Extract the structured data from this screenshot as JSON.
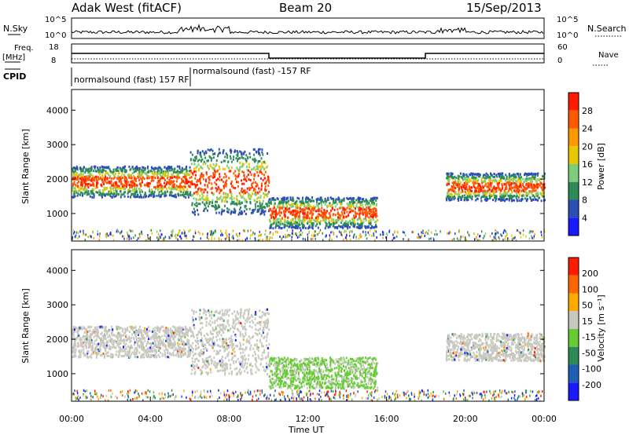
{
  "header": {
    "title": "Adak West (fitACF)",
    "beam": "Beam 20",
    "date": "15/Sep/2013"
  },
  "top_panels": {
    "nsky_label": "N.Sky",
    "nsearch_label": "N.Search",
    "noise_ticks_left": [
      "10^5",
      "10^0"
    ],
    "noise_ticks_right": [
      "10^5",
      "10^0"
    ],
    "freq_label": "Freq.",
    "freq_unit": "[MHz]",
    "freq_ticks": [
      "18",
      "8"
    ],
    "nave_label": "Nave",
    "nave_ticks": [
      "60",
      "0"
    ],
    "cpid_label": "CPID",
    "cpid_entries": [
      "normalsound (fast) 157 RF",
      "normalsound (fast) -157 RF"
    ]
  },
  "chart_data": [
    {
      "type": "heatmap",
      "title": "",
      "ylabel": "Slant Range [km]",
      "xlabel": "",
      "ylim": [
        200,
        4600
      ],
      "y_ticks": [
        "1000",
        "2000",
        "3000",
        "4000"
      ],
      "colorbar_label": "Power [dB]",
      "colorbar_ticks": [
        "4",
        "8",
        "12",
        "16",
        "20",
        "24",
        "28"
      ],
      "colors": [
        "#1a1aff",
        "#2d4fb5",
        "#2e8b57",
        "#7ccd7c",
        "#e8c800",
        "#ff9900",
        "#ff5a00",
        "#ff1a00"
      ],
      "bands_range_km": [
        {
          "x0": 0.0,
          "x1": 6.0,
          "y_low": 1500,
          "y_high": 2400
        },
        {
          "x0": 6.0,
          "x1": 10.0,
          "y_low": 1000,
          "y_high": 2900
        },
        {
          "x0": 10.0,
          "x1": 15.5,
          "y_low": 600,
          "y_high": 1500
        },
        {
          "x0": 19.0,
          "x1": 24.0,
          "y_low": 1400,
          "y_high": 2200
        }
      ]
    },
    {
      "type": "heatmap",
      "title": "",
      "ylabel": "Slant Range [km]",
      "xlabel": "Time UT",
      "ylim": [
        200,
        4600
      ],
      "y_ticks": [
        "1000",
        "2000",
        "3000",
        "4000"
      ],
      "x_ticks": [
        "00:00",
        "04:00",
        "08:00",
        "12:00",
        "16:00",
        "20:00",
        "00:00"
      ],
      "colorbar_label": "Velocity [m s⁻¹]",
      "colorbar_ticks": [
        "200",
        "100",
        "50",
        "15",
        "-15",
        "-50",
        "-100",
        "-200"
      ],
      "colors": [
        "#1a1aff",
        "#1e5fb4",
        "#2e8b57",
        "#66cc33",
        "#c8c8c0",
        "#ffaa00",
        "#ff6600",
        "#ff1a00"
      ]
    }
  ]
}
